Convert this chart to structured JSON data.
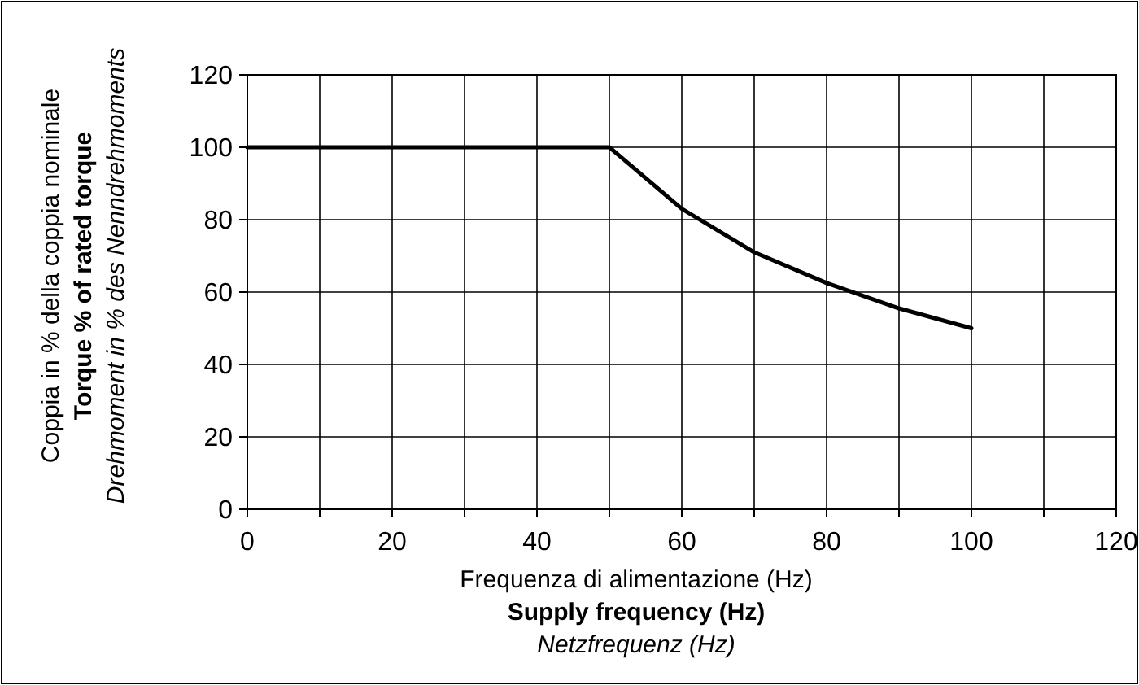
{
  "chart_data": {
    "type": "line",
    "xlabel": "Frequenza di alimentazione (Hz)\nSupply frequency (Hz)\nNetzfrequenz (Hz)",
    "ylabel": "Coppia in % della coppia  nominale\nTorque % of rated torque\nDrehmoment in % des Nenndrehmoments",
    "x": [
      0,
      50,
      60,
      70,
      80,
      90,
      100
    ],
    "series": [
      {
        "color": "#000000",
        "values": [
          100,
          100,
          83,
          71,
          62.5,
          55.5,
          50
        ]
      }
    ],
    "xlim": [
      0,
      120
    ],
    "ylim": [
      0,
      120
    ],
    "xticks": [
      0,
      {
        "value": 10,
        "label": null
      },
      20,
      {
        "value": 30,
        "label": null
      },
      40,
      {
        "value": 50,
        "label": null
      },
      60,
      {
        "value": 70,
        "label": null
      },
      80,
      {
        "value": 90,
        "label": null
      },
      100,
      {
        "value": 110,
        "label": null
      },
      120
    ],
    "yticks": [
      0,
      20,
      40,
      60,
      80,
      100,
      120
    ],
    "grid": true,
    "marker": "none",
    "line_style": "solid"
  }
}
